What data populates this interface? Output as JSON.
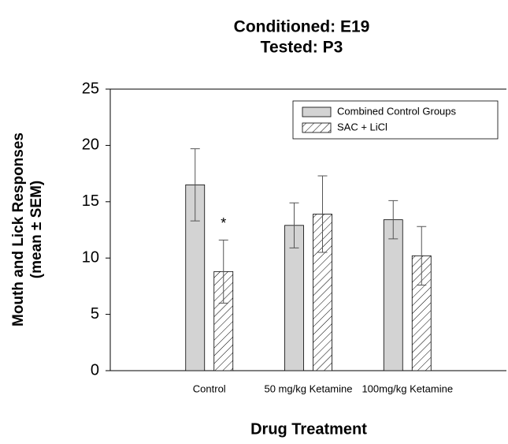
{
  "chart_data": {
    "type": "bar",
    "title": [
      "Conditioned: E19",
      "Tested: P3"
    ],
    "xlabel": "Drug Treatment",
    "ylabel": [
      "Mouth and Lick Responses",
      "(mean ± SEM)"
    ],
    "categories": [
      "Control",
      "50 mg/kg Ketamine",
      "100mg/kg Ketamine"
    ],
    "series": [
      {
        "name": "Combined Control Groups",
        "color": "#d3d3d3",
        "values": [
          16.5,
          12.9,
          13.4
        ],
        "errors": [
          3.2,
          2.0,
          1.7
        ]
      },
      {
        "name": "SAC + LiCl",
        "color": "#ffffff",
        "hatch": true,
        "values": [
          8.8,
          13.9,
          10.2
        ],
        "errors": [
          2.8,
          3.4,
          2.6
        ]
      }
    ],
    "annotations": [
      "*"
    ],
    "ylim": [
      0,
      25
    ],
    "yticks": [
      0,
      5,
      10,
      15,
      20,
      25
    ],
    "legend": "upper-right"
  }
}
